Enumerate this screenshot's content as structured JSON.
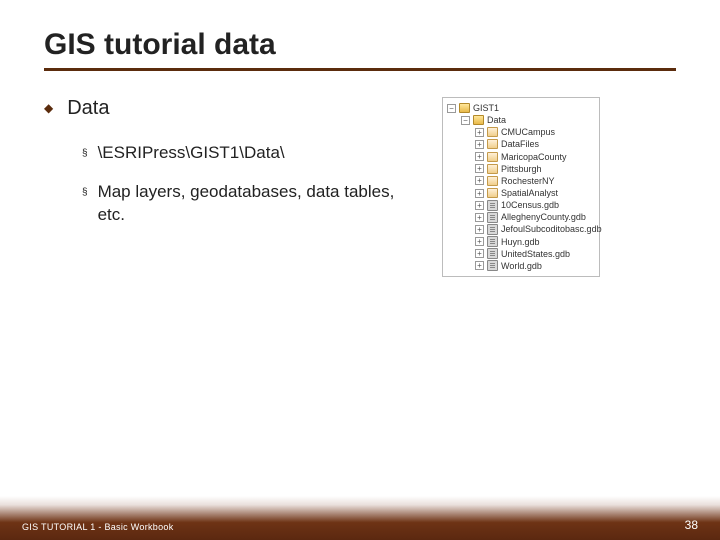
{
  "title": "GIS tutorial data",
  "level1": {
    "text": "Data",
    "bullet": "◆"
  },
  "level2": [
    {
      "text": "\\ESRIPress\\GIST1\\Data\\",
      "bullet": "§"
    },
    {
      "text": "Map layers, geodatabases, data tables, etc.",
      "bullet": "§"
    }
  ],
  "tree": {
    "root": "GIST1",
    "data_folder": "Data",
    "items": [
      {
        "type": "folder",
        "label": "CMUCampus"
      },
      {
        "type": "folder",
        "label": "DataFiles"
      },
      {
        "type": "folder",
        "label": "MaricopaCounty"
      },
      {
        "type": "folder",
        "label": "Pittsburgh"
      },
      {
        "type": "folder",
        "label": "RochesterNY"
      },
      {
        "type": "folder",
        "label": "SpatialAnalyst"
      },
      {
        "type": "gdb",
        "label": "10Census.gdb"
      },
      {
        "type": "gdb",
        "label": "AlleghenyCounty.gdb"
      },
      {
        "type": "gdb",
        "label": "JefoulSubcoditobasc.gdb"
      },
      {
        "type": "gdb",
        "label": "Huyn.gdb"
      },
      {
        "type": "gdb",
        "label": "UnitedStates.gdb"
      },
      {
        "type": "gdb",
        "label": "World.gdb"
      }
    ]
  },
  "footer": {
    "left": "GIS TUTORIAL 1 - Basic Workbook",
    "page": "38"
  },
  "colors": {
    "accent": "#5b2c0d",
    "footer_grad_top": "rgba(110,45,18,0.0)",
    "footer_grad_bottom": "#5b2810"
  }
}
